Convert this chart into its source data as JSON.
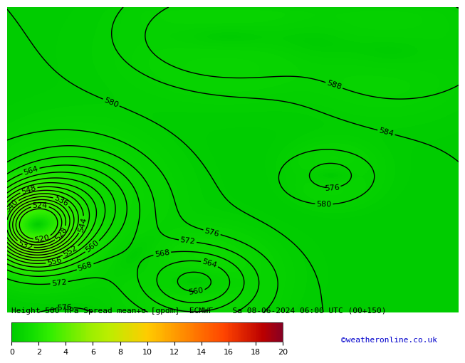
{
  "title_text": "Height 500 hPa Spread mean+σ [gpdm]  ECMWF    Sa 08-06-2024 06:00 UTC (00+150)",
  "watermark": "©weatheronline.co.uk",
  "cbar_ticks": [
    0,
    2,
    4,
    6,
    8,
    10,
    12,
    14,
    16,
    18,
    20
  ],
  "vmin": 0,
  "vmax": 20,
  "contour_color": "black",
  "contour_levels": [
    520,
    524,
    528,
    532,
    536,
    540,
    544,
    548,
    552,
    556,
    560,
    564,
    568,
    572,
    576,
    580,
    584,
    588
  ],
  "contour_linewidth": 1.0,
  "label_fontsize": 8,
  "title_fontsize": 8,
  "watermark_color": "#0000cc",
  "watermark_fontsize": 8,
  "colors_spread": [
    "#00cc00",
    "#11dd00",
    "#33ee00",
    "#66ee00",
    "#99ee00",
    "#bbee00",
    "#dddd00",
    "#ffcc00",
    "#ffaa00",
    "#ff8800",
    "#ff6600",
    "#ff4400",
    "#dd2200",
    "#bb0000",
    "#880022"
  ]
}
